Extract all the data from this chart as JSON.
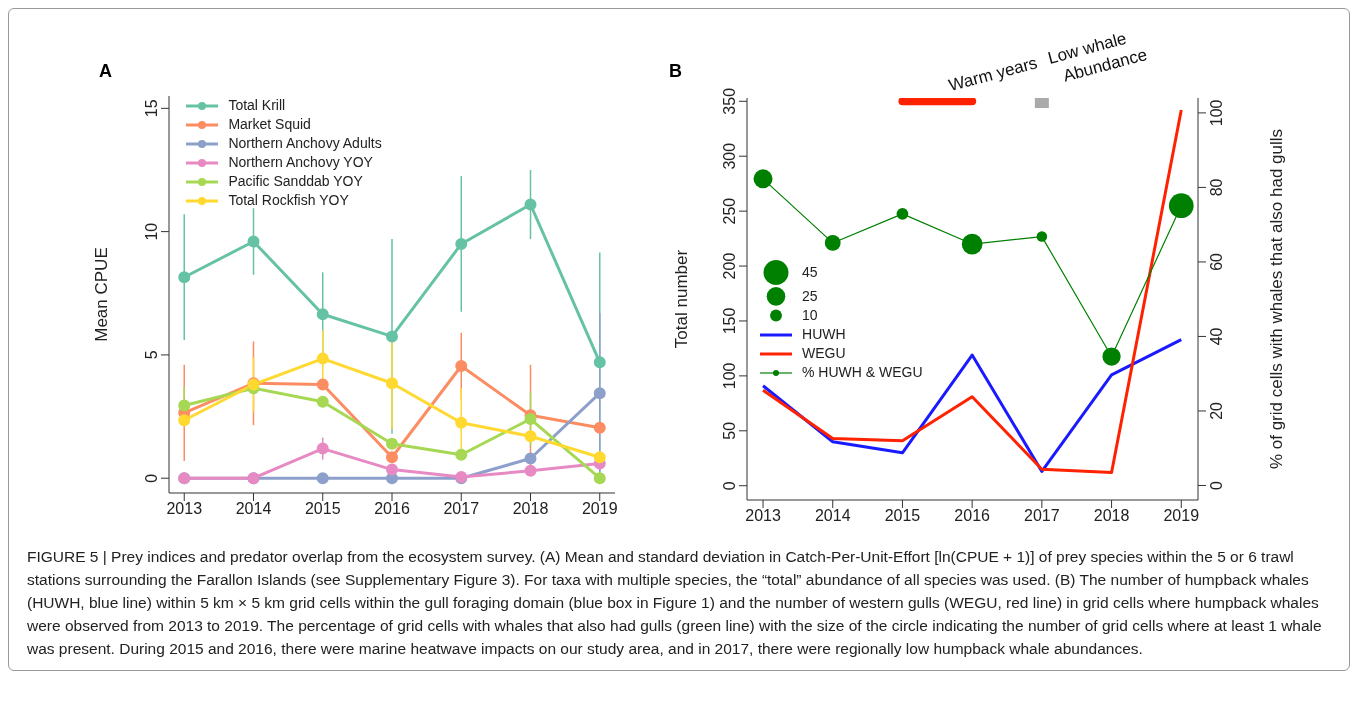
{
  "chart_data": [
    {
      "type": "line",
      "title": "A",
      "ylabel": "Mean CPUE",
      "x": [
        2013,
        2014,
        2015,
        2016,
        2017,
        2018,
        2019
      ],
      "xlim": [
        2012.78,
        2019.22
      ],
      "xticks": [
        2013,
        2014,
        2015,
        2016,
        2017,
        2018,
        2019
      ],
      "ylim": [
        -0.6,
        15.5
      ],
      "yticks": [
        0,
        5,
        10,
        15
      ],
      "legend": "top left",
      "marker": "circle",
      "series": [
        {
          "name": "Total Krill",
          "color": "#66c2a5",
          "values": [
            8.15,
            9.6,
            6.65,
            5.75,
            9.5,
            11.1,
            4.7
          ],
          "errors": [
            2.55,
            1.35,
            1.7,
            3.95,
            2.75,
            1.4,
            4.45
          ]
        },
        {
          "name": "Market Squid",
          "color": "#fc8d62",
          "values": [
            2.65,
            3.85,
            3.8,
            0.85,
            4.55,
            2.55,
            2.05
          ],
          "errors": [
            1.95,
            1.7,
            null,
            null,
            1.35,
            2.05,
            null
          ]
        },
        {
          "name": "Northern Anchovy Adults",
          "color": "#8da0cb",
          "values": [
            0,
            0,
            0,
            0,
            0,
            0.8,
            3.45
          ],
          "errors": [
            null,
            null,
            null,
            null,
            null,
            null,
            3.25
          ]
        },
        {
          "name": "Northern Anchovy YOY",
          "color": "#e78ac3",
          "values": [
            0,
            0,
            1.2,
            0.35,
            0.05,
            0.3,
            0.6
          ],
          "errors": [
            null,
            null,
            0.45,
            null,
            null,
            null,
            null
          ]
        },
        {
          "name": "Pacific Sanddab YOY",
          "color": "#a6d854",
          "values": [
            2.95,
            3.65,
            3.1,
            1.4,
            0.95,
            2.4,
            0
          ],
          "errors": [
            0.75,
            null,
            null,
            null,
            null,
            1.1,
            null
          ]
        },
        {
          "name": "Total Rockfish YOY",
          "color": "#ffd92f",
          "values": [
            2.35,
            3.8,
            4.85,
            3.85,
            2.25,
            1.7,
            0.85
          ],
          "errors": [
            null,
            1.1,
            1.15,
            1.85,
            1.4,
            null,
            null
          ]
        }
      ]
    },
    {
      "type": "line",
      "title": "B",
      "ylabel": "Total number",
      "y2label": "% of grid cells with whales that also had gulls",
      "x": [
        2013,
        2014,
        2015,
        2016,
        2017,
        2018,
        2019
      ],
      "xlim": [
        2012.77,
        2019.24
      ],
      "xticks": [
        2013,
        2014,
        2015,
        2016,
        2017,
        2018,
        2019
      ],
      "ylim": [
        -13,
        353
      ],
      "yticks": [
        0,
        50,
        100,
        150,
        200,
        250,
        300,
        350
      ],
      "y2lim": [
        -3.9,
        104
      ],
      "y2ticks": [
        0,
        20,
        40,
        60,
        80,
        100
      ],
      "legend": "left",
      "marker": "none",
      "size_legend": [
        45,
        25,
        10
      ],
      "ref_lines": [
        {
          "axis": "x",
          "value": 2017,
          "label": "Low whale Abundance",
          "color": "#aaaaaa"
        }
      ],
      "annotations": [
        "FIGURE 5 | Prey indices and predator overlap from the ecosystem survey. (A) Mean and standard deviation in Catch-Per-Unit-Effort [ln(CPUE + 1)] of prey species within the 5 or 6 trawl stations surrounding the Farallon Islands (see Supplementary Figure 3). For taxa with multiple species, the “total” abundance of all species was used. (B) The number of humpback whales (HUWH, blue line) within 5 km × 5 km grid cells within the gull foraging domain (blue box in Figure 1) and the number of western gulls (WEGU, red line) in grid cells where humpback whales were observed from 2013 to 2019. The percentage of grid cells with whales that also had gulls (green line) with the size of the circle indicating the number of grid cells where at least 1 whale was present. During 2015 and 2016, there were marine heatwave impacts on our study area, and in 2017, there were regionally low humpback whale abundances."
      ],
      "series": [
        {
          "name": "Warm years",
          "color": "#ff2200",
          "type": "line",
          "x": [
            2015,
            2016
          ],
          "values": [
            350,
            350
          ]
        },
        {
          "name": "HUWH",
          "color": "#1a1aff",
          "values": [
            91,
            40,
            30,
            119,
            13,
            101,
            133
          ]
        },
        {
          "name": "WEGU",
          "color": "#ff2200",
          "values": [
            87,
            43,
            41,
            81,
            15,
            12,
            342
          ]
        },
        {
          "color": "#008000",
          "type": "line",
          "axis": "y2",
          "line_style": "solid",
          "values": [
            82.3,
            65.1,
            72.9,
            64.8,
            66.8,
            34.6,
            75.1
          ]
        },
        {
          "name": "% HUWH & WEGU",
          "color": "#008000",
          "type": "bubble",
          "axis": "y2",
          "marker": "circle",
          "values": [
            82.3,
            65.1,
            72.9,
            64.8,
            66.8,
            34.6,
            75.1
          ],
          "sizes": [
            26,
            18,
            10,
            31,
            8,
            24,
            44
          ]
        }
      ]
    }
  ]
}
